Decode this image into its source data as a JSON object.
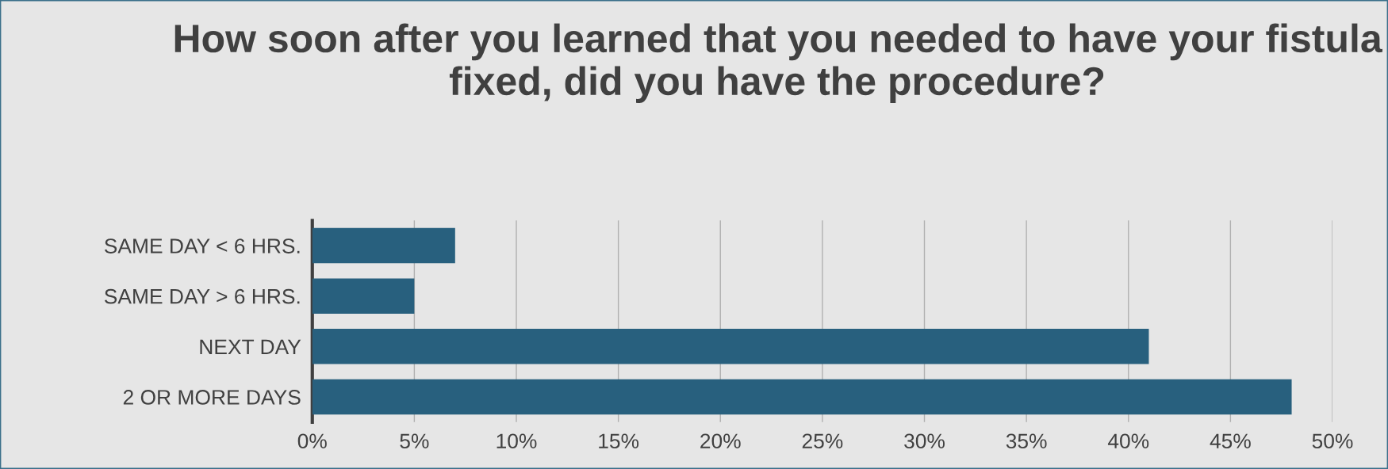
{
  "chart_data": {
    "type": "bar",
    "orientation": "horizontal",
    "title": "How soon after you learned that you needed to have your fistula fixed, did you have the procedure?",
    "categories": [
      "SAME DAY < 6 HRS.",
      "SAME DAY > 6 HRS.",
      "NEXT DAY",
      "2 OR MORE DAYS"
    ],
    "values": [
      7,
      5,
      41,
      48
    ],
    "color": "#28607e",
    "xlim": [
      0,
      50
    ],
    "xticks": [
      {
        "value": 0,
        "label": "0%"
      },
      {
        "value": 5,
        "label": "5%"
      },
      {
        "value": 10,
        "label": "10%"
      },
      {
        "value": 15,
        "label": "15%"
      },
      {
        "value": 20,
        "label": "20%"
      },
      {
        "value": 25,
        "label": "25%"
      },
      {
        "value": 30,
        "label": "30%"
      },
      {
        "value": 35,
        "label": "35%"
      },
      {
        "value": 40,
        "label": "40%"
      },
      {
        "value": 45,
        "label": "45%"
      },
      {
        "value": 50,
        "label": "50%"
      }
    ],
    "grid": "x"
  }
}
